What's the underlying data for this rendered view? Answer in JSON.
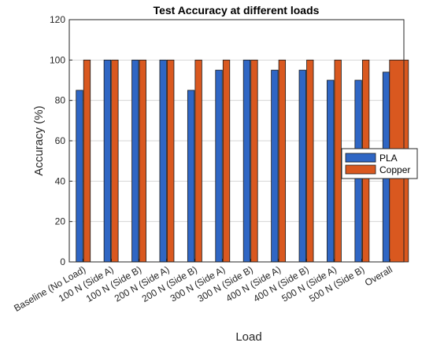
{
  "chart_data": {
    "type": "bar",
    "title": "Test Accuracy at different loads",
    "xlabel": "Load",
    "ylabel": "Accuracy (%)",
    "ylim": [
      0,
      120
    ],
    "yticks": [
      0,
      20,
      40,
      60,
      80,
      100,
      120
    ],
    "grid": "y-major",
    "legend_position": "right",
    "categories": [
      "Baseline (No Load)",
      "100 N (Side A)",
      "100 N (Side B)",
      "200 N (Side A)",
      "200 N (Side B)",
      "300 N (Side A)",
      "300 N (Side B)",
      "400 N (Side A)",
      "400 N (Side B)",
      "500 N (Side A)",
      "500 N (Side B)",
      "Overall"
    ],
    "series": [
      {
        "name": "PLA",
        "color": "#2f66c4",
        "values": [
          85,
          100,
          100,
          100,
          85,
          95,
          100,
          95,
          95,
          90,
          90,
          94
        ]
      },
      {
        "name": "Copper",
        "color": "#d9581f",
        "values": [
          100,
          100,
          100,
          100,
          100,
          100,
          100,
          100,
          100,
          100,
          100,
          100
        ]
      }
    ]
  }
}
